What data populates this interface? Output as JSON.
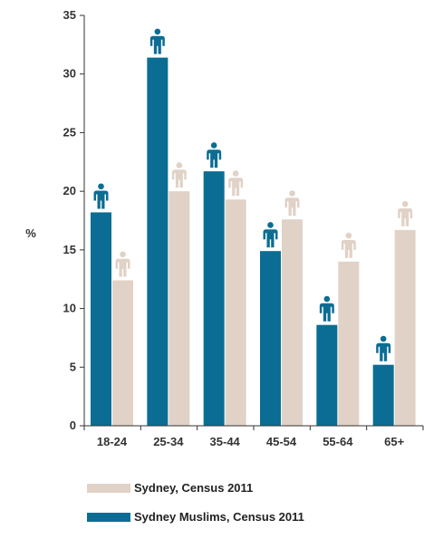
{
  "chart_data": {
    "type": "bar",
    "title": "",
    "xlabel": "",
    "ylabel": "%",
    "ylim": [
      0,
      35
    ],
    "yticks": [
      "0",
      "5",
      "10",
      "15",
      "20",
      "25",
      "30",
      "35"
    ],
    "grid": false,
    "categories": [
      "18-24",
      "25-34",
      "35-44",
      "45-54",
      "55-64",
      "65+"
    ],
    "series": [
      {
        "name": "Sydney Muslims, Census 2011",
        "color": "#0b6d93",
        "marker_icon": "person-icon",
        "values": [
          18.2,
          31.4,
          21.7,
          14.9,
          8.6,
          5.2
        ]
      },
      {
        "name": "Sydney, Census 2011",
        "color": "#e0d2c6",
        "marker_icon": "person-icon",
        "values": [
          12.4,
          20.0,
          19.3,
          17.6,
          14.0,
          16.7
        ]
      }
    ],
    "legend_position": "bottom"
  },
  "legend": {
    "items": [
      {
        "label": "Sydney, Census 2011",
        "color": "#e0d2c6"
      },
      {
        "label": "Sydney Muslims, Census 2011",
        "color": "#0b6d93"
      }
    ]
  }
}
